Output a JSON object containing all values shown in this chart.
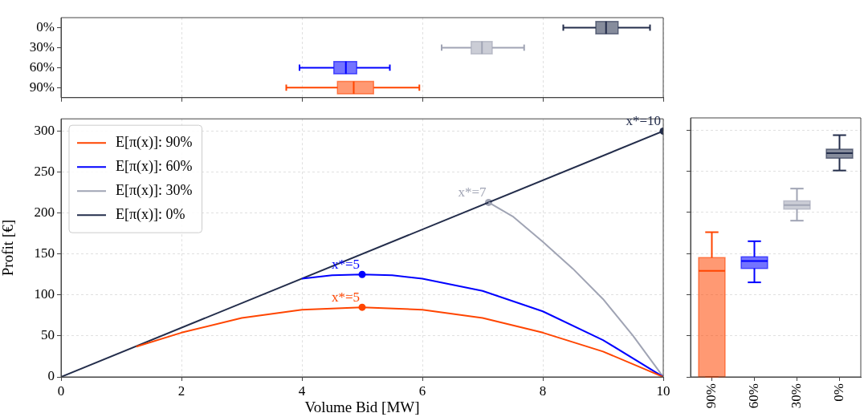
{
  "chart_data": [
    {
      "type": "box",
      "orientation": "horizontal",
      "categories": [
        "0%",
        "30%",
        "60%",
        "90%"
      ],
      "xlim": [
        0,
        10
      ],
      "xticks": [
        {
          "value": 0,
          "label": null
        },
        {
          "value": 2,
          "label": null
        },
        {
          "value": 4,
          "label": null
        },
        {
          "value": 6,
          "label": null
        },
        {
          "value": 8,
          "label": null
        },
        {
          "value": 10,
          "label": null
        }
      ],
      "grid": "x",
      "tick_labels": "y",
      "boxes": [
        {
          "low": 8.34,
          "q1": 8.88,
          "median": 9.05,
          "q3": 9.25,
          "high": 9.78
        },
        {
          "low": 6.32,
          "q1": 6.81,
          "median": 6.99,
          "q3": 7.16,
          "high": 7.69
        },
        {
          "low": 3.96,
          "q1": 4.53,
          "median": 4.73,
          "q3": 4.91,
          "high": 5.46
        },
        {
          "low": 3.74,
          "q1": 4.59,
          "median": 4.86,
          "q3": 5.19,
          "high": 5.95
        }
      ],
      "colors": [
        "#232d4b",
        "#a0a4b4",
        "#0000ff",
        "#ff4500"
      ]
    },
    {
      "type": "line",
      "xlabel": "Volume Bid [MW]",
      "ylabel": "Profit [€]",
      "xlim": [
        0,
        10
      ],
      "xticks": [
        0,
        2,
        4,
        6,
        8,
        10
      ],
      "ylim": [
        0,
        315
      ],
      "yticks": [
        0,
        50,
        100,
        150,
        200,
        250,
        300
      ],
      "grid": true,
      "legend": "top left",
      "series": [
        {
          "name": "E[π(x)]: 90%",
          "color": "#ff4500",
          "x": [
            1.25,
            2,
            3,
            4,
            5,
            6,
            7,
            8,
            9,
            10
          ],
          "values": [
            37,
            54,
            72,
            82,
            85,
            82,
            72,
            54,
            31,
            0
          ]
        },
        {
          "name": "E[π(x)]: 60%",
          "color": "#0000ff",
          "x": [
            4,
            4.5,
            5,
            5.5,
            6,
            7,
            8,
            9,
            10
          ],
          "values": [
            120,
            124,
            125,
            124,
            120,
            105,
            80,
            45,
            0
          ]
        },
        {
          "name": "E[π(x)]: 30%",
          "color": "#a0a4b4",
          "x": [
            7.1,
            7.5,
            8,
            8.5,
            9,
            9.5,
            10
          ],
          "values": [
            213,
            196,
            165,
            132,
            95,
            50,
            0
          ]
        },
        {
          "name": "E[π(x)]: 0%",
          "color": "#232d4b",
          "x": [
            0,
            10
          ],
          "values": [
            0,
            300
          ]
        },
        {
          "type": "scatter",
          "x": [
            5,
            5,
            7.1,
            10
          ],
          "values": [
            85,
            125,
            213,
            300
          ],
          "colors": [
            "#ff4500",
            "#0000ff",
            "#a0a4b4",
            "#232d4b"
          ]
        }
      ],
      "annotations": [
        {
          "text": "x*=5",
          "x": 5,
          "y": 85
        },
        {
          "text": "x*=5",
          "x": 5,
          "y": 125
        },
        {
          "text": "x*=7",
          "x": 7.1,
          "y": 213
        },
        {
          "text": "x*=10",
          "x": 10,
          "y": 300
        }
      ]
    },
    {
      "type": "box",
      "categories": [
        "90%",
        "60%",
        "30%",
        "0%"
      ],
      "ylim": [
        0,
        315
      ],
      "yticks": [
        {
          "value": 0,
          "label": null
        },
        {
          "value": 50,
          "label": null
        },
        {
          "value": 100,
          "label": null
        },
        {
          "value": 150,
          "label": null
        },
        {
          "value": 200,
          "label": null
        },
        {
          "value": 250,
          "label": null
        },
        {
          "value": 300,
          "label": null
        }
      ],
      "grid": "y",
      "tick_labels": "x",
      "boxes": [
        {
          "low": 0,
          "q1": 0,
          "median": 129,
          "q3": 145,
          "high": 176
        },
        {
          "low": 115,
          "q1": 132,
          "median": 141,
          "q3": 146,
          "high": 165
        },
        {
          "low": 190,
          "q1": 204,
          "median": 209,
          "q3": 214,
          "high": 229
        },
        {
          "low": 251,
          "q1": 266,
          "median": 272,
          "q3": 277,
          "high": 294
        }
      ],
      "colors": [
        "#ff4500",
        "#0000ff",
        "#a0a4b4",
        "#232d4b"
      ]
    }
  ]
}
